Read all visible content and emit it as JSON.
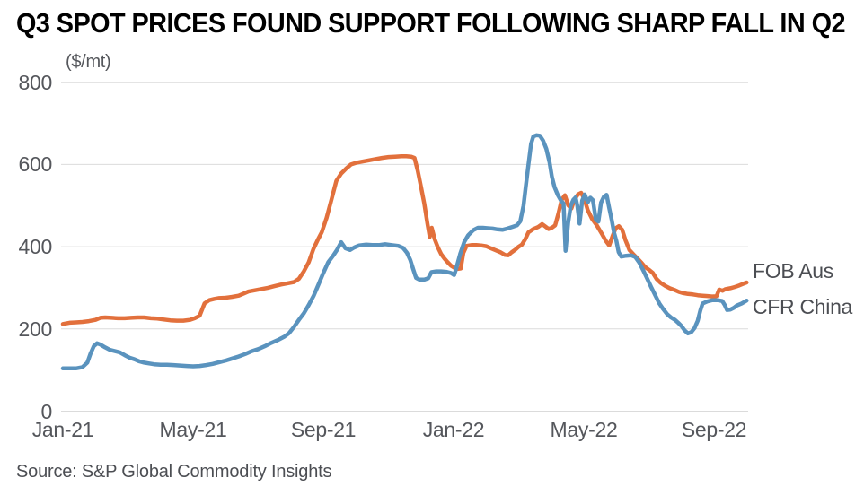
{
  "title": "Q3 SPOT PRICES FOUND SUPPORT FOLLOWING SHARP FALL IN Q2",
  "source_note": "Source: S&P Global Commodity Insights",
  "colors": {
    "background": "#FFFFFF",
    "grid": "#DBDBDB",
    "axis_text": "#55575C",
    "title_text": "#000000",
    "fob_aus_orange": "#E2703C",
    "cfr_china_blue": "#5A93BE"
  },
  "chart_data": {
    "type": "line",
    "title": "Q3 SPOT PRICES FOUND SUPPORT FOLLOWING SHARP FALL IN Q2",
    "unit_label": "($/mt)",
    "xlabel": "",
    "ylabel": "($/mt)",
    "ylim": [
      0,
      800
    ],
    "yticks": [
      0,
      200,
      400,
      600,
      800
    ],
    "grid": true,
    "legend_position": "right of line ends",
    "x_unit": "months since Jan-2021",
    "xticks": [
      {
        "pos": 0,
        "label": "Jan-21"
      },
      {
        "pos": 4,
        "label": "May-21"
      },
      {
        "pos": 8,
        "label": "Sep-21"
      },
      {
        "pos": 12,
        "label": "Jan-22"
      },
      {
        "pos": 16,
        "label": "May-22"
      },
      {
        "pos": 20,
        "label": "Sep-22"
      }
    ],
    "series": [
      {
        "name": "FOB Aus",
        "color": "#E2703C",
        "points": [
          [
            0,
            212
          ],
          [
            0.2,
            215
          ],
          [
            0.4,
            216
          ],
          [
            0.6,
            217
          ],
          [
            0.8,
            219
          ],
          [
            1,
            222
          ],
          [
            1.15,
            227
          ],
          [
            1.3,
            228
          ],
          [
            1.5,
            227
          ],
          [
            1.7,
            226
          ],
          [
            1.9,
            226
          ],
          [
            2.1,
            227
          ],
          [
            2.3,
            228
          ],
          [
            2.5,
            228
          ],
          [
            2.7,
            226
          ],
          [
            2.9,
            225
          ],
          [
            3.1,
            223
          ],
          [
            3.3,
            221
          ],
          [
            3.5,
            220
          ],
          [
            3.7,
            220
          ],
          [
            3.9,
            222
          ],
          [
            4.05,
            226
          ],
          [
            4.2,
            232
          ],
          [
            4.35,
            262
          ],
          [
            4.5,
            270
          ],
          [
            4.65,
            273
          ],
          [
            4.8,
            275
          ],
          [
            5,
            276
          ],
          [
            5.2,
            278
          ],
          [
            5.4,
            281
          ],
          [
            5.55,
            286
          ],
          [
            5.7,
            291
          ],
          [
            5.9,
            294
          ],
          [
            6.1,
            297
          ],
          [
            6.3,
            300
          ],
          [
            6.5,
            304
          ],
          [
            6.7,
            308
          ],
          [
            6.9,
            311
          ],
          [
            7.1,
            314
          ],
          [
            7.25,
            322
          ],
          [
            7.4,
            340
          ],
          [
            7.55,
            362
          ],
          [
            7.7,
            395
          ],
          [
            7.85,
            420
          ],
          [
            7.95,
            435
          ],
          [
            8.1,
            470
          ],
          [
            8.25,
            515
          ],
          [
            8.4,
            560
          ],
          [
            8.55,
            578
          ],
          [
            8.7,
            590
          ],
          [
            8.85,
            600
          ],
          [
            9,
            604
          ],
          [
            9.2,
            607
          ],
          [
            9.4,
            610
          ],
          [
            9.6,
            613
          ],
          [
            9.8,
            616
          ],
          [
            10,
            618
          ],
          [
            10.2,
            619
          ],
          [
            10.4,
            620
          ],
          [
            10.55,
            620
          ],
          [
            10.7,
            619
          ],
          [
            10.8,
            616
          ],
          [
            10.9,
            585
          ],
          [
            11,
            545
          ],
          [
            11.1,
            505
          ],
          [
            11.2,
            455
          ],
          [
            11.27,
            424
          ],
          [
            11.33,
            446
          ],
          [
            11.42,
            418
          ],
          [
            11.52,
            398
          ],
          [
            11.62,
            382
          ],
          [
            11.72,
            371
          ],
          [
            11.82,
            362
          ],
          [
            11.92,
            354
          ],
          [
            12.02,
            349
          ],
          [
            12.12,
            346
          ],
          [
            12.22,
            347
          ],
          [
            12.3,
            385
          ],
          [
            12.4,
            402
          ],
          [
            12.55,
            404
          ],
          [
            12.7,
            404
          ],
          [
            12.85,
            403
          ],
          [
            13,
            401
          ],
          [
            13.15,
            396
          ],
          [
            13.3,
            391
          ],
          [
            13.45,
            386
          ],
          [
            13.58,
            380
          ],
          [
            13.68,
            379
          ],
          [
            13.78,
            386
          ],
          [
            13.9,
            393
          ],
          [
            14,
            400
          ],
          [
            14.1,
            405
          ],
          [
            14.2,
            418
          ],
          [
            14.3,
            435
          ],
          [
            14.45,
            443
          ],
          [
            14.6,
            448
          ],
          [
            14.72,
            455
          ],
          [
            14.82,
            449
          ],
          [
            14.92,
            443
          ],
          [
            15.02,
            446
          ],
          [
            15.12,
            452
          ],
          [
            15.22,
            480
          ],
          [
            15.32,
            514
          ],
          [
            15.42,
            525
          ],
          [
            15.52,
            501
          ],
          [
            15.62,
            493
          ],
          [
            15.72,
            516
          ],
          [
            15.82,
            527
          ],
          [
            15.92,
            531
          ],
          [
            16.02,
            516
          ],
          [
            16.12,
            489
          ],
          [
            16.25,
            468
          ],
          [
            16.4,
            452
          ],
          [
            16.55,
            432
          ],
          [
            16.68,
            414
          ],
          [
            16.78,
            403
          ],
          [
            16.88,
            425
          ],
          [
            16.98,
            445
          ],
          [
            17.08,
            450
          ],
          [
            17.18,
            441
          ],
          [
            17.28,
            416
          ],
          [
            17.4,
            392
          ],
          [
            17.52,
            382
          ],
          [
            17.64,
            372
          ],
          [
            17.76,
            362
          ],
          [
            17.88,
            351
          ],
          [
            18,
            344
          ],
          [
            18.12,
            336
          ],
          [
            18.24,
            321
          ],
          [
            18.36,
            312
          ],
          [
            18.5,
            305
          ],
          [
            18.64,
            299
          ],
          [
            18.78,
            295
          ],
          [
            18.92,
            290
          ],
          [
            19.06,
            287
          ],
          [
            19.2,
            285
          ],
          [
            19.35,
            284
          ],
          [
            19.5,
            282
          ],
          [
            19.65,
            281
          ],
          [
            19.8,
            280
          ],
          [
            19.95,
            279
          ],
          [
            20.08,
            280
          ],
          [
            20.16,
            296
          ],
          [
            20.26,
            293
          ],
          [
            20.36,
            297
          ],
          [
            20.5,
            299
          ],
          [
            20.64,
            302
          ],
          [
            20.78,
            306
          ],
          [
            20.9,
            310
          ],
          [
            21,
            313
          ]
        ]
      },
      {
        "name": "CFR China",
        "color": "#5A93BE",
        "points": [
          [
            0,
            104
          ],
          [
            0.2,
            104
          ],
          [
            0.4,
            104
          ],
          [
            0.6,
            107
          ],
          [
            0.75,
            118
          ],
          [
            0.85,
            140
          ],
          [
            0.95,
            158
          ],
          [
            1.05,
            165
          ],
          [
            1.15,
            162
          ],
          [
            1.3,
            155
          ],
          [
            1.45,
            149
          ],
          [
            1.6,
            146
          ],
          [
            1.75,
            143
          ],
          [
            1.9,
            136
          ],
          [
            2.05,
            130
          ],
          [
            2.2,
            126
          ],
          [
            2.35,
            121
          ],
          [
            2.5,
            118
          ],
          [
            2.65,
            116
          ],
          [
            2.8,
            114
          ],
          [
            3,
            113
          ],
          [
            3.2,
            113
          ],
          [
            3.4,
            112
          ],
          [
            3.6,
            111
          ],
          [
            3.8,
            110
          ],
          [
            4,
            109
          ],
          [
            4.2,
            110
          ],
          [
            4.4,
            112
          ],
          [
            4.6,
            115
          ],
          [
            4.8,
            119
          ],
          [
            5,
            123
          ],
          [
            5.2,
            128
          ],
          [
            5.4,
            133
          ],
          [
            5.6,
            139
          ],
          [
            5.8,
            146
          ],
          [
            6,
            151
          ],
          [
            6.2,
            158
          ],
          [
            6.4,
            166
          ],
          [
            6.6,
            173
          ],
          [
            6.8,
            181
          ],
          [
            6.95,
            190
          ],
          [
            7.1,
            205
          ],
          [
            7.25,
            222
          ],
          [
            7.4,
            238
          ],
          [
            7.55,
            258
          ],
          [
            7.7,
            280
          ],
          [
            7.85,
            308
          ],
          [
            8,
            336
          ],
          [
            8.15,
            362
          ],
          [
            8.3,
            378
          ],
          [
            8.42,
            392
          ],
          [
            8.55,
            411
          ],
          [
            8.68,
            396
          ],
          [
            8.82,
            392
          ],
          [
            8.95,
            398
          ],
          [
            9.1,
            403
          ],
          [
            9.3,
            405
          ],
          [
            9.5,
            404
          ],
          [
            9.7,
            404
          ],
          [
            9.9,
            406
          ],
          [
            10.1,
            404
          ],
          [
            10.3,
            402
          ],
          [
            10.45,
            397
          ],
          [
            10.57,
            385
          ],
          [
            10.67,
            368
          ],
          [
            10.76,
            345
          ],
          [
            10.85,
            324
          ],
          [
            10.95,
            320
          ],
          [
            11.1,
            320
          ],
          [
            11.22,
            323
          ],
          [
            11.32,
            338
          ],
          [
            11.47,
            340
          ],
          [
            11.62,
            340
          ],
          [
            11.77,
            339
          ],
          [
            11.92,
            336
          ],
          [
            12.02,
            331
          ],
          [
            12.1,
            352
          ],
          [
            12.2,
            382
          ],
          [
            12.33,
            412
          ],
          [
            12.45,
            428
          ],
          [
            12.6,
            440
          ],
          [
            12.75,
            446
          ],
          [
            12.9,
            446
          ],
          [
            13.05,
            445
          ],
          [
            13.2,
            444
          ],
          [
            13.35,
            442
          ],
          [
            13.5,
            441
          ],
          [
            13.65,
            444
          ],
          [
            13.8,
            448
          ],
          [
            13.95,
            452
          ],
          [
            14.05,
            462
          ],
          [
            14.15,
            500
          ],
          [
            14.22,
            548
          ],
          [
            14.3,
            600
          ],
          [
            14.38,
            650
          ],
          [
            14.45,
            668
          ],
          [
            14.55,
            671
          ],
          [
            14.65,
            670
          ],
          [
            14.75,
            658
          ],
          [
            14.85,
            638
          ],
          [
            14.95,
            605
          ],
          [
            15.02,
            570
          ],
          [
            15.1,
            545
          ],
          [
            15.2,
            526
          ],
          [
            15.3,
            512
          ],
          [
            15.38,
            505
          ],
          [
            15.44,
            390
          ],
          [
            15.52,
            458
          ],
          [
            15.6,
            500
          ],
          [
            15.68,
            514
          ],
          [
            15.75,
            520
          ],
          [
            15.8,
            500
          ],
          [
            15.87,
            456
          ],
          [
            15.95,
            512
          ],
          [
            16.03,
            527
          ],
          [
            16.12,
            508
          ],
          [
            16.2,
            519
          ],
          [
            16.28,
            513
          ],
          [
            16.37,
            466
          ],
          [
            16.45,
            461
          ],
          [
            16.53,
            507
          ],
          [
            16.62,
            522
          ],
          [
            16.7,
            526
          ],
          [
            16.78,
            494
          ],
          [
            16.86,
            464
          ],
          [
            16.93,
            434
          ],
          [
            17,
            414
          ],
          [
            17.07,
            387
          ],
          [
            17.15,
            376
          ],
          [
            17.3,
            378
          ],
          [
            17.45,
            379
          ],
          [
            17.58,
            375
          ],
          [
            17.7,
            362
          ],
          [
            17.83,
            342
          ],
          [
            17.95,
            322
          ],
          [
            18.08,
            300
          ],
          [
            18.2,
            281
          ],
          [
            18.32,
            262
          ],
          [
            18.44,
            248
          ],
          [
            18.56,
            236
          ],
          [
            18.68,
            228
          ],
          [
            18.8,
            222
          ],
          [
            18.9,
            215
          ],
          [
            19,
            207
          ],
          [
            19.1,
            196
          ],
          [
            19.2,
            189
          ],
          [
            19.3,
            192
          ],
          [
            19.4,
            202
          ],
          [
            19.5,
            220
          ],
          [
            19.58,
            245
          ],
          [
            19.65,
            262
          ],
          [
            19.8,
            267
          ],
          [
            19.95,
            270
          ],
          [
            20.1,
            270
          ],
          [
            20.25,
            268
          ],
          [
            20.33,
            258
          ],
          [
            20.4,
            246
          ],
          [
            20.5,
            247
          ],
          [
            20.6,
            251
          ],
          [
            20.7,
            257
          ],
          [
            20.85,
            262
          ],
          [
            21,
            269
          ]
        ]
      }
    ]
  }
}
